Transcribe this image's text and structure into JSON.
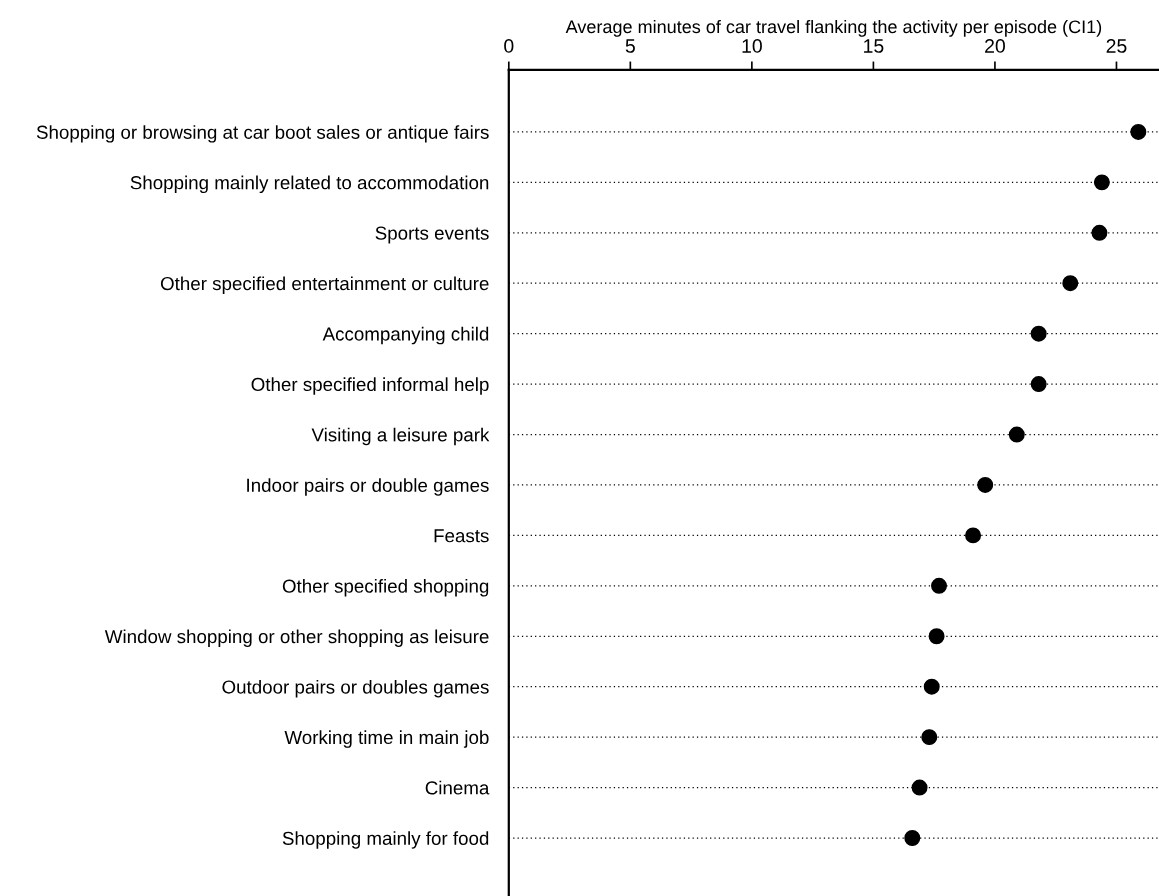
{
  "chart_data": {
    "type": "scatter",
    "orientation": "horizontal",
    "xlabel": "Average minutes of car travel flanking the activity per episode (CI1)",
    "categories": [
      "Shopping or browsing at car boot sales or antique fairs",
      "Shopping mainly related to accommodation",
      "Sports events",
      "Other specified entertainment or culture",
      "Accompanying child",
      "Other specified informal help",
      "Visiting a leisure park",
      "Indoor pairs or double games",
      "Feasts",
      "Other specified shopping",
      "Window shopping or other shopping as leisure",
      "Outdoor pairs or doubles games",
      "Working time in main job",
      "Cinema",
      "Shopping mainly for food"
    ],
    "series": [
      {
        "color": "#000000",
        "values": [
          25.9,
          24.4,
          24.3,
          23.1,
          21.8,
          21.8,
          20.9,
          19.6,
          19.1,
          17.7,
          17.6,
          17.4,
          17.3,
          16.9,
          16.6
        ]
      }
    ],
    "xlim": [
      0,
      26.75
    ],
    "xticks": [
      0,
      5,
      10,
      15,
      20,
      25
    ],
    "grid": "y",
    "marker": "circle",
    "legend": false
  }
}
